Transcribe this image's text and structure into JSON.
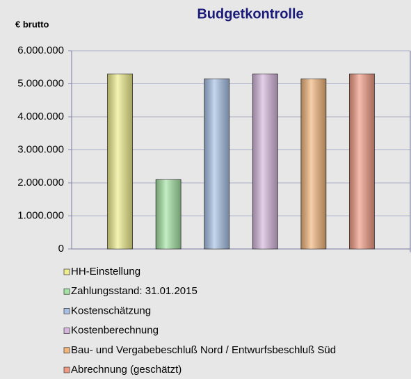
{
  "chart_data": {
    "type": "bar",
    "title": "Budgetkontrolle",
    "y_label": "€ brutto",
    "categories": [
      null
    ],
    "series": [
      {
        "name": "HH-Einstellung",
        "color": "#efee8c",
        "values": [
          5300000
        ]
      },
      {
        "name": "Zahlungsstand: 31.01.2015",
        "color": "#a3e3a3",
        "values": [
          2100000
        ]
      },
      {
        "name": "Kostenschätzung",
        "color": "#a7c0e6",
        "values": [
          5150000
        ]
      },
      {
        "name": "Kostenberechnung",
        "color": "#d6b6dd",
        "values": [
          5300000
        ]
      },
      {
        "name": "Bau- und Vergabebeschluß Nord / Entwurfsbeschluß Süd",
        "color": "#f2b57a",
        "values": [
          5150000
        ]
      },
      {
        "name": "Abrechnung (geschätzt)",
        "color": "#f19a83",
        "values": [
          5300000
        ]
      }
    ],
    "ylim": [
      0,
      6000000
    ],
    "yticks": [
      0,
      {
        "value": 1000000,
        "label": "1.000.000"
      },
      {
        "value": 2000000,
        "label": "2.000.000"
      },
      {
        "value": 3000000,
        "label": "3.000.000"
      },
      {
        "value": 4000000,
        "label": "4.000.000"
      },
      {
        "value": 5000000,
        "label": "5.000.000"
      },
      {
        "value": 6000000,
        "label": "6.000.000"
      }
    ],
    "grid": true,
    "legend": "bottom"
  }
}
